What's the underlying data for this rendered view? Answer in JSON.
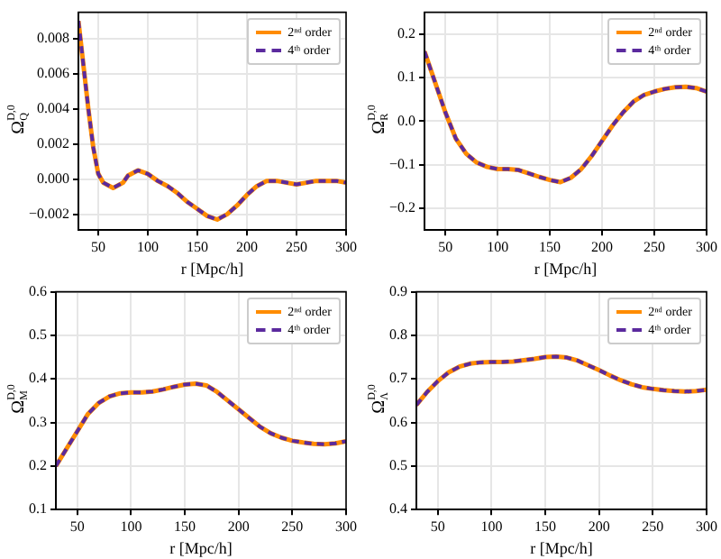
{
  "chart_data": [
    {
      "type": "line",
      "ylabel": "Ω$_{Q}$$^{D,0}$",
      "xlabel": "r [Mpc/h]",
      "legend": "top right",
      "grid": true,
      "x": [
        30,
        35,
        40,
        45,
        50,
        55,
        65,
        75,
        80,
        90,
        100,
        110,
        120,
        130,
        140,
        150,
        160,
        170,
        180,
        190,
        200,
        210,
        220,
        230,
        240,
        250,
        260,
        270,
        280,
        290,
        300
      ],
      "xlim": [
        30,
        300
      ],
      "xticks": [
        50,
        100,
        150,
        200,
        250,
        300
      ],
      "ylim": [
        -0.0029,
        0.0095
      ],
      "yticks": [
        {
          "value": -0.002,
          "label": "−0.002"
        },
        {
          "value": 0,
          "label": "0.000"
        },
        0.002,
        0.004,
        0.006,
        0.008
      ],
      "series": [
        {
          "name": "2ⁿᵈ order",
          "color": "#ff8c00",
          "line_style": "solid",
          "values": [
            0.009,
            0.0065,
            0.004,
            0.0018,
            0.0003,
            -0.0002,
            -0.0005,
            -0.0002,
            0.0002,
            0.0005,
            0.0003,
            -0.0001,
            -0.0004,
            -0.0008,
            -0.0013,
            -0.0017,
            -0.0021,
            -0.0023,
            -0.002,
            -0.0015,
            -0.0009,
            -0.0004,
            -0.0001,
            -0.0001,
            -0.0002,
            -0.0003,
            -0.0002,
            -0.0001,
            -0.0001,
            -0.0001,
            -0.0002
          ]
        },
        {
          "name": "4ᵗʰ order",
          "color": "#5b2a9e",
          "line_style": "dashed",
          "values": [
            0.009,
            0.0065,
            0.004,
            0.0018,
            0.0003,
            -0.0002,
            -0.0005,
            -0.0002,
            0.0002,
            0.0005,
            0.0003,
            -0.0001,
            -0.0004,
            -0.0008,
            -0.0013,
            -0.0017,
            -0.0021,
            -0.0023,
            -0.002,
            -0.0015,
            -0.0009,
            -0.0004,
            -0.0001,
            -0.0001,
            -0.0002,
            -0.0003,
            -0.0002,
            -0.0001,
            -0.0001,
            -0.0001,
            -0.0002
          ]
        }
      ]
    },
    {
      "type": "line",
      "ylabel": "Ω$_{R}$$^{D,0}$",
      "xlabel": "r [Mpc/h]",
      "legend": "top right",
      "grid": true,
      "x": [
        30,
        40,
        50,
        60,
        70,
        80,
        90,
        100,
        110,
        120,
        130,
        140,
        150,
        160,
        170,
        180,
        190,
        200,
        210,
        220,
        230,
        240,
        250,
        260,
        270,
        280,
        290,
        300
      ],
      "xlim": [
        30,
        300
      ],
      "xticks": [
        50,
        100,
        150,
        200,
        250,
        300
      ],
      "ylim": [
        -0.25,
        0.25
      ],
      "yticks": [
        {
          "value": -0.2,
          "label": "−0.2"
        },
        {
          "value": -0.1,
          "label": "−0.1"
        },
        {
          "value": 0,
          "label": "0.0"
        },
        0.1,
        0.2
      ],
      "series": [
        {
          "name": "2ⁿᵈ order",
          "color": "#ff8c00",
          "line_style": "solid",
          "values": [
            0.16,
            0.09,
            0.02,
            -0.04,
            -0.075,
            -0.095,
            -0.105,
            -0.11,
            -0.11,
            -0.112,
            -0.12,
            -0.128,
            -0.135,
            -0.14,
            -0.13,
            -0.11,
            -0.08,
            -0.045,
            -0.01,
            0.02,
            0.045,
            0.06,
            0.068,
            0.074,
            0.078,
            0.079,
            0.076,
            0.068
          ]
        },
        {
          "name": "4ᵗʰ order",
          "color": "#5b2a9e",
          "line_style": "dashed",
          "values": [
            0.16,
            0.09,
            0.02,
            -0.04,
            -0.075,
            -0.095,
            -0.105,
            -0.11,
            -0.11,
            -0.112,
            -0.12,
            -0.128,
            -0.135,
            -0.14,
            -0.13,
            -0.11,
            -0.08,
            -0.045,
            -0.01,
            0.02,
            0.045,
            0.06,
            0.068,
            0.074,
            0.078,
            0.079,
            0.076,
            0.068
          ]
        }
      ]
    },
    {
      "type": "line",
      "ylabel": "Ω$_{M}$$^{D,0}$",
      "xlabel": "r [Mpc/h]",
      "legend": "top right",
      "grid": true,
      "x": [
        30,
        40,
        50,
        60,
        70,
        80,
        90,
        100,
        110,
        120,
        130,
        140,
        150,
        160,
        170,
        180,
        190,
        200,
        210,
        220,
        230,
        240,
        250,
        260,
        270,
        280,
        290,
        300
      ],
      "xlim": [
        30,
        300
      ],
      "xticks": [
        50,
        100,
        150,
        200,
        250,
        300
      ],
      "ylim": [
        0.1,
        0.6
      ],
      "yticks": [
        0.1,
        0.2,
        0.3,
        0.4,
        0.5,
        0.6
      ],
      "series": [
        {
          "name": "2ⁿᵈ order",
          "color": "#ff8c00",
          "line_style": "solid",
          "values": [
            0.2,
            0.24,
            0.28,
            0.32,
            0.345,
            0.36,
            0.367,
            0.369,
            0.369,
            0.371,
            0.376,
            0.382,
            0.387,
            0.389,
            0.385,
            0.37,
            0.35,
            0.33,
            0.31,
            0.29,
            0.275,
            0.265,
            0.258,
            0.254,
            0.251,
            0.25,
            0.252,
            0.257
          ]
        },
        {
          "name": "4ᵗʰ order",
          "color": "#5b2a9e",
          "line_style": "dashed",
          "values": [
            0.2,
            0.24,
            0.28,
            0.32,
            0.345,
            0.36,
            0.367,
            0.369,
            0.369,
            0.371,
            0.376,
            0.382,
            0.387,
            0.389,
            0.385,
            0.37,
            0.35,
            0.33,
            0.31,
            0.29,
            0.275,
            0.265,
            0.258,
            0.254,
            0.251,
            0.25,
            0.252,
            0.257
          ]
        }
      ]
    },
    {
      "type": "line",
      "ylabel": "Ω$_{Λ}$$^{D,0}$",
      "xlabel": "r [Mpc/h]",
      "legend": "top right",
      "grid": true,
      "x": [
        30,
        40,
        50,
        60,
        70,
        80,
        90,
        100,
        110,
        120,
        130,
        140,
        150,
        160,
        170,
        180,
        190,
        200,
        210,
        220,
        230,
        240,
        250,
        260,
        270,
        280,
        290,
        300
      ],
      "xlim": [
        30,
        300
      ],
      "xticks": [
        50,
        100,
        150,
        200,
        250,
        300
      ],
      "ylim": [
        0.4,
        0.9
      ],
      "yticks": [
        0.4,
        0.5,
        0.6,
        0.7,
        0.8,
        0.9
      ],
      "series": [
        {
          "name": "2ⁿᵈ order",
          "color": "#ff8c00",
          "line_style": "solid",
          "values": [
            0.64,
            0.67,
            0.695,
            0.715,
            0.728,
            0.735,
            0.738,
            0.739,
            0.739,
            0.74,
            0.743,
            0.746,
            0.75,
            0.751,
            0.749,
            0.742,
            0.731,
            0.72,
            0.708,
            0.697,
            0.688,
            0.681,
            0.677,
            0.674,
            0.672,
            0.671,
            0.672,
            0.675
          ]
        },
        {
          "name": "4ᵗʰ order",
          "color": "#5b2a9e",
          "line_style": "dashed",
          "values": [
            0.64,
            0.67,
            0.695,
            0.715,
            0.728,
            0.735,
            0.738,
            0.739,
            0.739,
            0.74,
            0.743,
            0.746,
            0.75,
            0.751,
            0.749,
            0.742,
            0.731,
            0.72,
            0.708,
            0.697,
            0.688,
            0.681,
            0.677,
            0.674,
            0.672,
            0.671,
            0.672,
            0.675
          ]
        }
      ]
    }
  ]
}
